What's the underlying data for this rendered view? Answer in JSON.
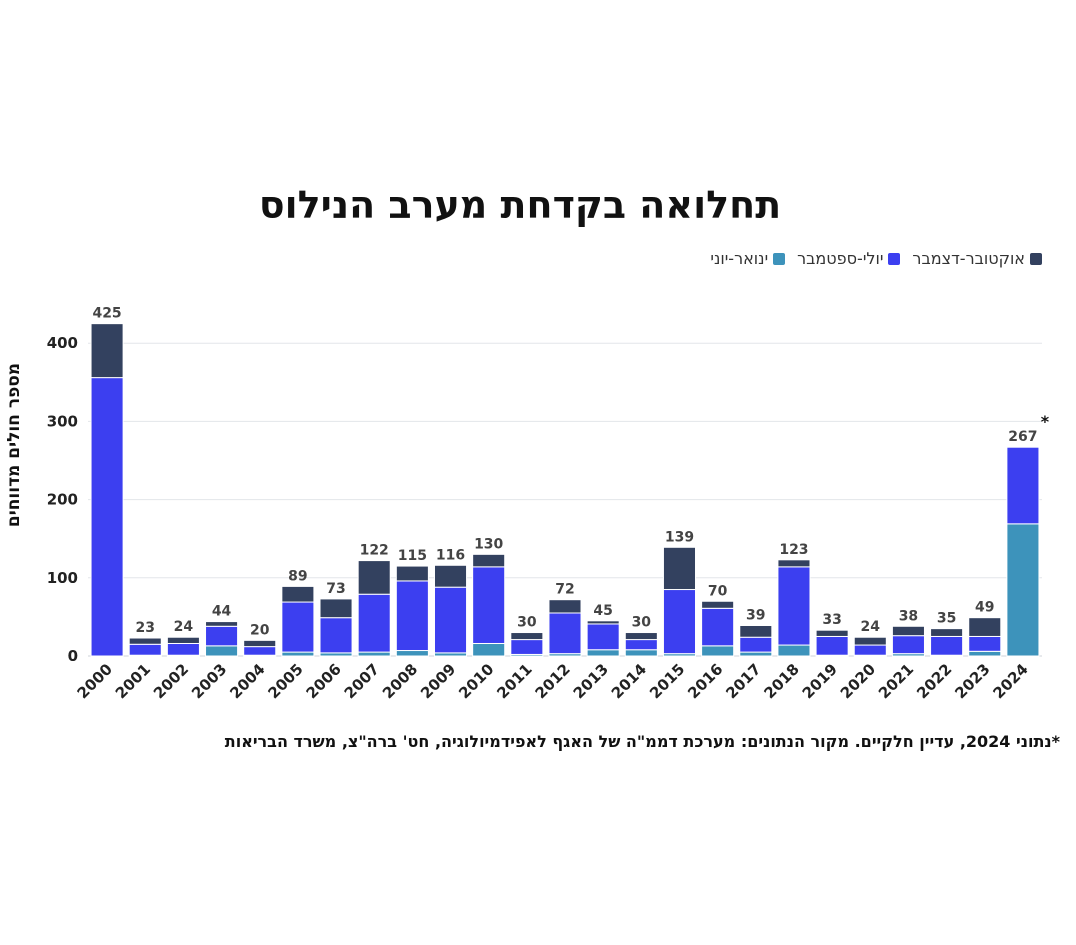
{
  "chart_data": {
    "type": "bar",
    "stacked": true,
    "title": "תחלואה בקדחת מערב הנילוס",
    "ylabel": "מספר חולים מדווחים",
    "xlabel": "",
    "ylim": [
      0,
      440
    ],
    "yticks": [
      0,
      100,
      200,
      300,
      400
    ],
    "grid": true,
    "legend_position": "top-right",
    "categories": [
      "2000",
      "2001",
      "2002",
      "2003",
      "2004",
      "2005",
      "2006",
      "2007",
      "2008",
      "2009",
      "2010",
      "2011",
      "2012",
      "2013",
      "2014",
      "2015",
      "2016",
      "2017",
      "2018",
      "2019",
      "2020",
      "2021",
      "2022",
      "2023",
      "2024"
    ],
    "totals": [
      425,
      23,
      24,
      44,
      20,
      89,
      73,
      122,
      115,
      116,
      130,
      30,
      72,
      45,
      30,
      139,
      70,
      39,
      123,
      33,
      24,
      38,
      35,
      49,
      267
    ],
    "series": [
      {
        "name": "ינואר-יוני",
        "color": "#3d93bb",
        "values": [
          0,
          1,
          1,
          13,
          1,
          5,
          4,
          5,
          7,
          4,
          16,
          2,
          3,
          8,
          8,
          3,
          13,
          5,
          14,
          1,
          1,
          3,
          1,
          6,
          169
        ]
      },
      {
        "name": "יולי-ספטמבר",
        "color": "#3c3ff0",
        "values": [
          356,
          14,
          15,
          25,
          11,
          64,
          45,
          74,
          89,
          84,
          98,
          19,
          52,
          33,
          13,
          82,
          48,
          19,
          100,
          24,
          13,
          23,
          24,
          19,
          98
        ]
      },
      {
        "name": "אוקטובר-דצמבר",
        "color": "#33415f",
        "values": [
          69,
          8,
          8,
          6,
          8,
          20,
          24,
          43,
          19,
          28,
          16,
          9,
          17,
          4,
          9,
          54,
          9,
          15,
          9,
          8,
          10,
          12,
          10,
          24,
          0
        ]
      }
    ],
    "annotations": [
      {
        "category": "2024",
        "text": "*"
      }
    ]
  },
  "footnote": "*נתוני 2024, עדיין חלקיים. מקור הנתונים: מערכת דממ\"ה של האגף לאפידמיולוגיה, חט' ברה\"צ, משרד הבריאות"
}
